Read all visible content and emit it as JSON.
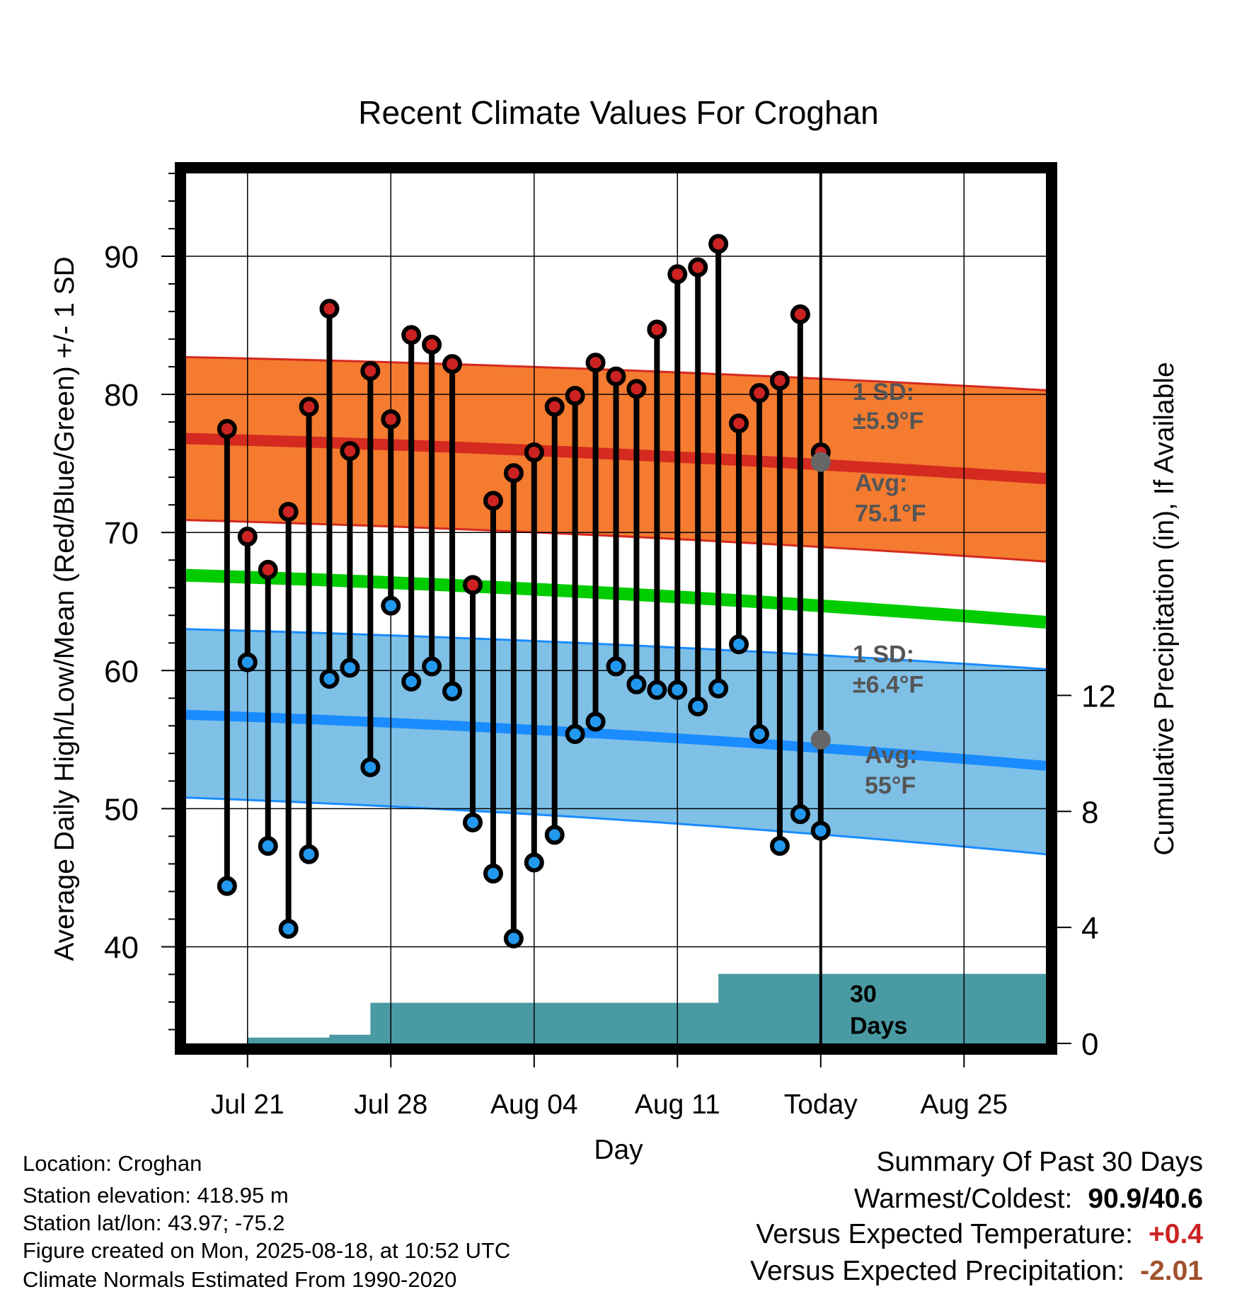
{
  "chart_data": {
    "type": "range",
    "title": "Recent Climate Values For Croghan",
    "xlabel": "Day",
    "ylabel": "Average Daily High/Low/Mean (Red/Blue/Green) +/- 1 SD",
    "y2label": "Cumulative Precipitation (in), If Available",
    "x_range": [
      "2025-07-18",
      "2025-08-29"
    ],
    "x_ticks": [
      {
        "date": "2025-07-21",
        "label": "Jul 21"
      },
      {
        "date": "2025-07-28",
        "label": "Jul 28"
      },
      {
        "date": "2025-08-04",
        "label": "Aug 04"
      },
      {
        "date": "2025-08-11",
        "label": "Aug 11"
      },
      {
        "date": "2025-08-18",
        "label": "Today"
      },
      {
        "date": "2025-08-25",
        "label": "Aug 25"
      }
    ],
    "ylim": [
      33,
      96
    ],
    "y_ticks": [
      40,
      50,
      60,
      70,
      80,
      90
    ],
    "y2lim": [
      0,
      30
    ],
    "y2_ticks": [
      0,
      4,
      8,
      12
    ],
    "grid": true,
    "today": "2025-08-18",
    "dates": [
      "2025-07-20",
      "2025-07-21",
      "2025-07-22",
      "2025-07-23",
      "2025-07-24",
      "2025-07-25",
      "2025-07-26",
      "2025-07-27",
      "2025-07-28",
      "2025-07-29",
      "2025-07-30",
      "2025-07-31",
      "2025-08-01",
      "2025-08-02",
      "2025-08-03",
      "2025-08-04",
      "2025-08-05",
      "2025-08-06",
      "2025-08-07",
      "2025-08-08",
      "2025-08-09",
      "2025-08-10",
      "2025-08-11",
      "2025-08-12",
      "2025-08-13",
      "2025-08-14",
      "2025-08-15",
      "2025-08-16",
      "2025-08-17"
    ],
    "highs": [
      77.5,
      69.7,
      67.3,
      71.5,
      79.1,
      86.2,
      75.9,
      81.7,
      78.2,
      84.3,
      83.6,
      82.2,
      66.2,
      72.3,
      74.3,
      75.8,
      79.1,
      79.9,
      82.3,
      81.3,
      80.4,
      84.7,
      88.7,
      89.2,
      90.9,
      77.9,
      80.1,
      81.0,
      85.8
    ],
    "lows": [
      44.4,
      60.6,
      47.3,
      41.3,
      46.7,
      59.4,
      60.2,
      53.0,
      64.7,
      59.2,
      60.3,
      58.5,
      49.0,
      45.3,
      40.6,
      46.1,
      48.1,
      55.4,
      56.3,
      60.3,
      59.0,
      58.6,
      58.6,
      57.4,
      58.7,
      61.9,
      55.4,
      47.3,
      49.6
    ],
    "extra_day": {
      "date": "2025-08-18",
      "high": 75.8,
      "low": 48.4
    },
    "normals": {
      "start_date": "2025-07-18",
      "end_date": "2025-08-29",
      "high_avg": [
        76.8,
        73.9
      ],
      "high_sd_upper": [
        82.7,
        80.3
      ],
      "high_sd_lower": [
        70.9,
        67.9
      ],
      "mean_avg": [
        66.9,
        63.5
      ],
      "low_avg": [
        56.8,
        53.1
      ],
      "low_sd_upper": [
        63.0,
        60.1
      ],
      "low_sd_lower": [
        50.8,
        46.7
      ]
    },
    "precip_steps": [
      {
        "date": "2025-07-18",
        "value": 0.0
      },
      {
        "date": "2025-07-20",
        "value": 0.0
      },
      {
        "date": "2025-07-21",
        "value": 0.2
      },
      {
        "date": "2025-07-25",
        "value": 0.3
      },
      {
        "date": "2025-07-27",
        "value": 1.4
      },
      {
        "date": "2025-08-13",
        "value": 2.4
      },
      {
        "date": "2025-08-29",
        "value": 2.4
      }
    ],
    "annotations": {
      "high_sd_title": "1 SD:",
      "high_sd_value": "±5.9°F",
      "high_avg_title": "Avg:",
      "high_avg_value": "75.1°F",
      "high_avg_marker": 75.1,
      "low_sd_title": "1 SD:",
      "low_sd_value": "±6.4°F",
      "low_avg_title": "Avg:",
      "low_avg_value": "55°F",
      "low_avg_marker": 55,
      "precip_label_1": "30",
      "precip_label_2": "Days"
    },
    "colors": {
      "high_band": "#f47b2f",
      "high_line": "#d42a20",
      "mean_line": "#00cc00",
      "low_band": "#7fc0e6",
      "low_line": "#1a8cff",
      "precip": "#4a9aa3",
      "marker_high": "#cc2222",
      "marker_low": "#2299ee",
      "annotation": "#555555",
      "avg_marker": "#666666"
    }
  },
  "info": {
    "location": "Location: Croghan",
    "elevation": "Station elevation: 418.95 m",
    "latlon": "Station lat/lon: 43.97; -75.2",
    "created": "Figure created on Mon, 2025-08-18, at 10:52 UTC",
    "normals": "Climate Normals Estimated From 1990-2020"
  },
  "summary": {
    "title": "Summary Of Past 30 Days",
    "warmest_coldest_label": "Warmest/Coldest:",
    "warmest_coldest_value": "90.9/40.6",
    "temp_label": "Versus Expected Temperature:",
    "temp_value": "+0.4",
    "temp_color": "#cc2222",
    "precip_label": "Versus Expected Precipitation:",
    "precip_value": "-2.01",
    "precip_color": "#a0522d"
  }
}
